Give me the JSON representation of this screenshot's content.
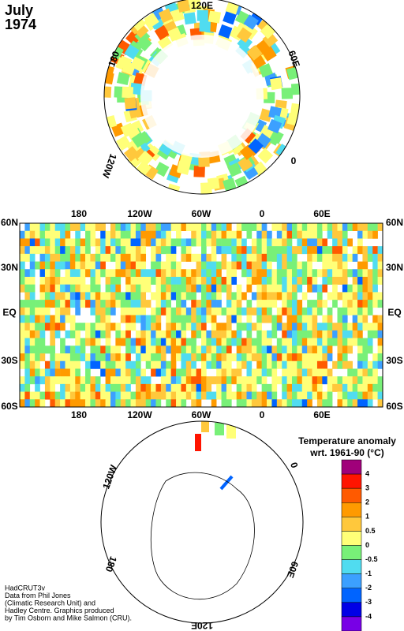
{
  "header": {
    "month": "July",
    "year": "1974"
  },
  "north_map": {
    "labels": [
      "120E",
      "180",
      "60E",
      "120W",
      "0"
    ]
  },
  "world_map": {
    "lat_labels": [
      "60N",
      "30N",
      "EQ",
      "30S",
      "60S"
    ],
    "lon_labels": [
      "180",
      "120W",
      "60W",
      "0",
      "60E"
    ]
  },
  "south_map": {
    "labels": [
      "120W",
      "0",
      "180",
      "60E",
      "120E"
    ]
  },
  "legend": {
    "title": "Temperature anomaly",
    "subtitle": "wrt. 1961-90  (°C)",
    "colors": [
      "#a0007a",
      "#ff1400",
      "#ff5a00",
      "#ff9a00",
      "#ffc83c",
      "#ffff78",
      "#78f078",
      "#50dcf0",
      "#3ca0ff",
      "#0064ff",
      "#0000e6",
      "#7800e6"
    ],
    "ticks": [
      "4",
      "3",
      "2",
      "1",
      "0.5",
      "0",
      "-0.5",
      "-1",
      "-2",
      "-3",
      "-4"
    ]
  },
  "credits": [
    "HadCRUT3v",
    "Data from Phil Jones",
    "(Climatic Research Unit) and",
    "Hadley Centre.  Graphics produced",
    "by Tim Osborn and Mike Salmon (CRU)."
  ]
}
